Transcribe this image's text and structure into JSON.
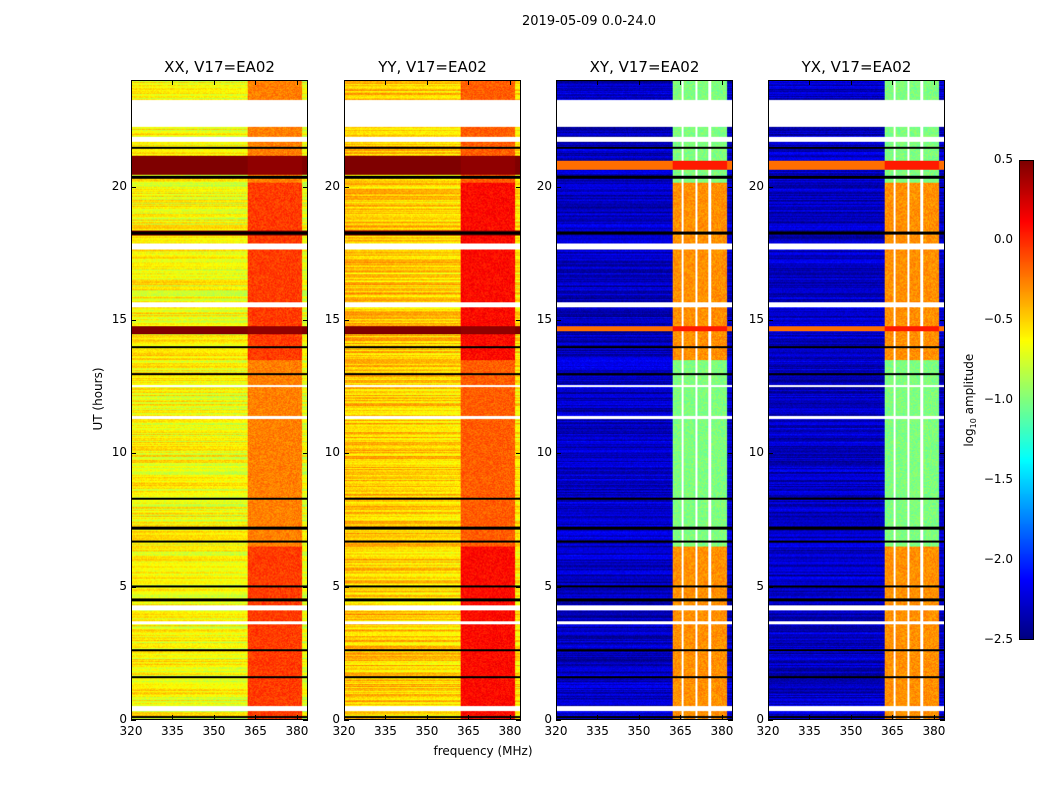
{
  "suptitle": "2019-05-09 0.0-24.0",
  "chart_data": {
    "type": "heatmap",
    "xlabel": "frequency (MHz)",
    "ylabel": "UT (hours)",
    "xlim": [
      320,
      384
    ],
    "ylim": [
      0,
      24
    ],
    "xticks": [
      "320",
      "335",
      "350",
      "365",
      "380"
    ],
    "xtick_values": [
      320,
      335,
      350,
      365,
      380
    ],
    "yticks": [
      "0",
      "5",
      "10",
      "15",
      "20"
    ],
    "ytick_values": [
      0,
      5,
      10,
      15,
      20
    ],
    "colorbar": {
      "label": "log",
      "label_sub": "10",
      "label_rest": " amplitude",
      "colormap": "jet",
      "range": [
        -2.5,
        0.5
      ],
      "ticks": [
        "0.5",
        "0.0",
        "−0.5",
        "−1.0",
        "−1.5",
        "−2.0",
        "−2.5"
      ],
      "tick_values": [
        0.5,
        0,
        -0.5,
        -1,
        -1.5,
        -2,
        -2.5
      ]
    },
    "band_mhz": [
      362,
      382
    ],
    "band_gaps_mhz": [
      365.7,
      370.7,
      375.7
    ],
    "flagged_hours_white": [
      [
        22.3,
        23.3
      ],
      [
        21.75,
        21.9
      ],
      [
        17.7,
        17.9
      ],
      [
        15.5,
        15.7
      ],
      [
        12.5,
        12.6
      ],
      [
        11.3,
        11.4
      ],
      [
        4.1,
        4.3
      ],
      [
        3.6,
        3.7
      ],
      [
        0.3,
        0.5
      ]
    ],
    "flagged_hours_black": [
      21.5,
      20.4,
      18.3,
      14.0,
      13.0,
      8.3,
      7.2,
      6.7,
      5.0,
      4.5,
      2.6,
      1.6,
      0.1
    ],
    "panels": [
      {
        "title": "XX, V17=EA02",
        "background": -0.6,
        "band": -0.25,
        "band_bursts": -0.05,
        "burst_hours": [
          [
            20.5,
            21.2
          ],
          [
            18.2,
            18.4
          ],
          [
            14.5,
            14.8
          ]
        ],
        "burst_level": 0.5
      },
      {
        "title": "YY, V17=EA02",
        "background": -0.45,
        "band": -0.15,
        "band_bursts": 0.1,
        "burst_hours": [
          [
            20.5,
            21.2
          ],
          [
            18.2,
            18.4
          ],
          [
            14.5,
            14.8
          ]
        ],
        "burst_level": 0.5
      },
      {
        "title": "XY, V17=EA02",
        "background": -2.3,
        "band": -1.0,
        "band_bursts": -0.3,
        "burst_hours": [
          [
            20.7,
            21.0
          ],
          [
            14.6,
            14.8
          ]
        ],
        "burst_level": 0.1
      },
      {
        "title": "YX, V17=EA02",
        "background": -2.3,
        "band": -1.0,
        "band_bursts": -0.3,
        "burst_hours": [
          [
            20.7,
            21.0
          ],
          [
            14.6,
            14.8
          ]
        ],
        "burst_level": 0.1
      }
    ]
  }
}
